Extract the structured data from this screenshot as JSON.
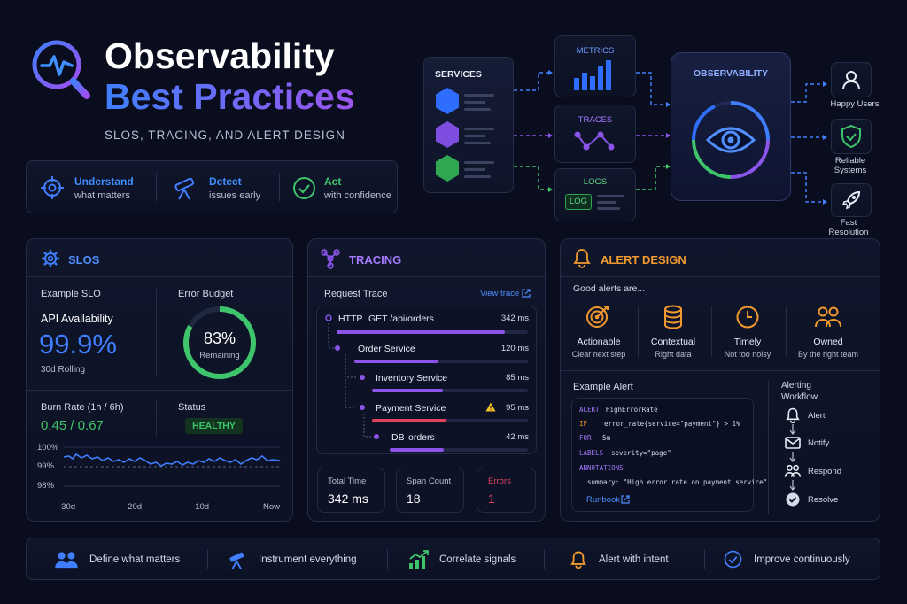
{
  "header": {
    "title_line1": "Observability",
    "title_line2": "Best Practices",
    "subtitle": "SLOS, TRACING, AND ALERT DESIGN"
  },
  "pillars": [
    {
      "title": "Understand",
      "sub": "what matters"
    },
    {
      "title": "Detect",
      "sub": "issues early"
    },
    {
      "title": "Act",
      "sub": "with confidence"
    }
  ],
  "diagram": {
    "services": "SERVICES",
    "metrics": "METRICS",
    "traces": "TRACES",
    "logs": "LOGS",
    "log_badge": "LOG",
    "observability": "OBSERVABILITY",
    "outcomes": [
      {
        "label1": "Happy Users",
        "label2": ""
      },
      {
        "label1": "Reliable",
        "label2": "Systems"
      },
      {
        "label1": "Fast",
        "label2": "Resolution"
      }
    ]
  },
  "slos": {
    "title": "SLOS",
    "example_label": "Example SLO",
    "slo_name": "API Availability",
    "slo_value": "99.9%",
    "slo_window": "30d Rolling",
    "budget_label": "Error Budget",
    "budget_value": "83%",
    "budget_caption": "Remaining",
    "budget_fraction": 0.83,
    "burn_label": "Burn Rate (1h / 6h)",
    "burn_value": "0.45 / 0.67",
    "status_label": "Status",
    "status_value": "HEALTHY",
    "y_ticks": [
      "100%",
      "99%",
      "98%"
    ],
    "x_ticks": [
      "-30d",
      "-20d",
      "-10d",
      "Now"
    ]
  },
  "tracing": {
    "title": "TRACING",
    "request_label": "Request Trace",
    "view_link": "View trace",
    "spans": [
      {
        "method": "HTTP",
        "name": "GET /api/orders",
        "duration": "342 ms",
        "ms": 342,
        "color": "#8a55e8",
        "warn": false
      },
      {
        "method": "",
        "name": "Order Service",
        "duration": "120 ms",
        "ms": 120,
        "color": "#8a55e8",
        "warn": false
      },
      {
        "method": "",
        "name": "Inventory Service",
        "duration": "85 ms",
        "ms": 85,
        "color": "#8a55e8",
        "warn": false
      },
      {
        "method": "",
        "name": "Payment Service",
        "duration": "95 ms",
        "ms": 95,
        "color": "#e0445c",
        "warn": true
      },
      {
        "method": "DB",
        "name": "orders",
        "duration": "42 ms",
        "ms": 42,
        "color": "#8a55e8",
        "warn": false
      }
    ],
    "stats": [
      {
        "label": "Total Time",
        "value": "342 ms"
      },
      {
        "label": "Span Count",
        "value": "18"
      },
      {
        "label": "Errors",
        "value": "1"
      }
    ]
  },
  "alert": {
    "title": "ALERT DESIGN",
    "intro": "Good alerts are...",
    "qualities": [
      {
        "title": "Actionable",
        "sub": "Clear next step"
      },
      {
        "title": "Contextual",
        "sub": "Right data"
      },
      {
        "title": "Timely",
        "sub": "Not too noisy"
      },
      {
        "title": "Owned",
        "sub": "By the right team"
      }
    ],
    "example_label": "Example Alert",
    "code": {
      "k_alert": "ALERT",
      "v_alert": "HighErrorRate",
      "k_if": "IF",
      "v_if": "error_rate{service=\"payment\"} > 1%",
      "k_for": "FOR",
      "v_for": "5m",
      "k_labels": "LABELS",
      "v_labels": "severity=\"page\"",
      "k_ann": "ANNOTATIONS",
      "v_ann": "summary: \"High error rate on payment service\""
    },
    "runbook": "Runbook",
    "workflow_title1": "Alerting",
    "workflow_title2": "Workflow",
    "workflow": [
      "Alert",
      "Notify",
      "Respond",
      "Resolve"
    ]
  },
  "footer": [
    "Define what matters",
    "Instrument everything",
    "Correlate signals",
    "Alert with intent",
    "Improve continuously"
  ],
  "colors": {
    "blue": "#3f7fff",
    "purple": "#8a55e8",
    "green": "#3ec46a",
    "orange": "#f29a2e",
    "red": "#e0445c"
  },
  "icons": [
    "pulse-magnifier-icon",
    "crosshair-icon",
    "telescope-icon",
    "check-circle-icon",
    "hexagon-icon",
    "bar-chart-icon",
    "trace-graph-icon",
    "eye-icon",
    "user-icon",
    "shield-check-icon",
    "rocket-icon",
    "gear-icon",
    "nodes-icon",
    "bell-icon",
    "target-icon",
    "database-icon",
    "clock-icon",
    "users-icon",
    "external-link-icon",
    "warning-icon",
    "envelope-icon",
    "growth-chart-icon"
  ]
}
